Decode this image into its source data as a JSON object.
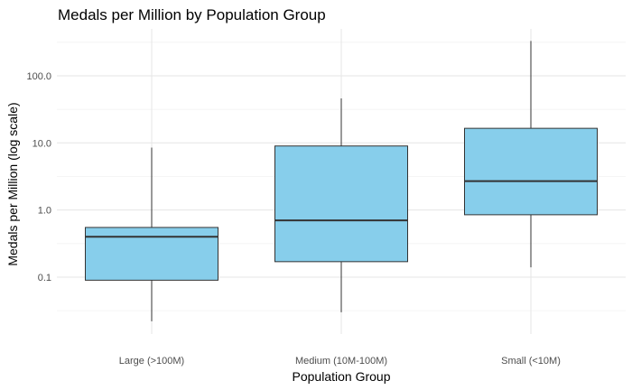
{
  "chart_data": {
    "type": "boxplot",
    "title": "Medals per Million by Population Group",
    "xlabel": "Population Group",
    "ylabel": "Medals per Million (log scale)",
    "y_scale": "log10",
    "ylim": [
      0.0142,
      500
    ],
    "y_ticks": [
      0.1,
      1.0,
      10.0,
      100.0
    ],
    "y_tick_labels": [
      "0.1",
      "1.0",
      "10.0",
      "100.0"
    ],
    "grid": true,
    "legend": "none",
    "categories": [
      "Large (>100M)",
      "Medium (10M-100M)",
      "Small (<10M)"
    ],
    "boxes": [
      {
        "category": "Large (>100M)",
        "whisker_low": 0.022,
        "q1": 0.09,
        "median": 0.4,
        "q3": 0.55,
        "whisker_high": 8.5
      },
      {
        "category": "Medium (10M-100M)",
        "whisker_low": 0.03,
        "q1": 0.17,
        "median": 0.7,
        "q3": 9.0,
        "whisker_high": 46
      },
      {
        "category": "Small (<10M)",
        "whisker_low": 0.14,
        "q1": 0.85,
        "median": 2.7,
        "q3": 16.5,
        "whisker_high": 330
      }
    ],
    "colors": {
      "box_fill": "#87CEEB",
      "box_stroke": "#333333",
      "grid_major": "#e6e6e6",
      "grid_minor": "#f2f2f2"
    }
  }
}
